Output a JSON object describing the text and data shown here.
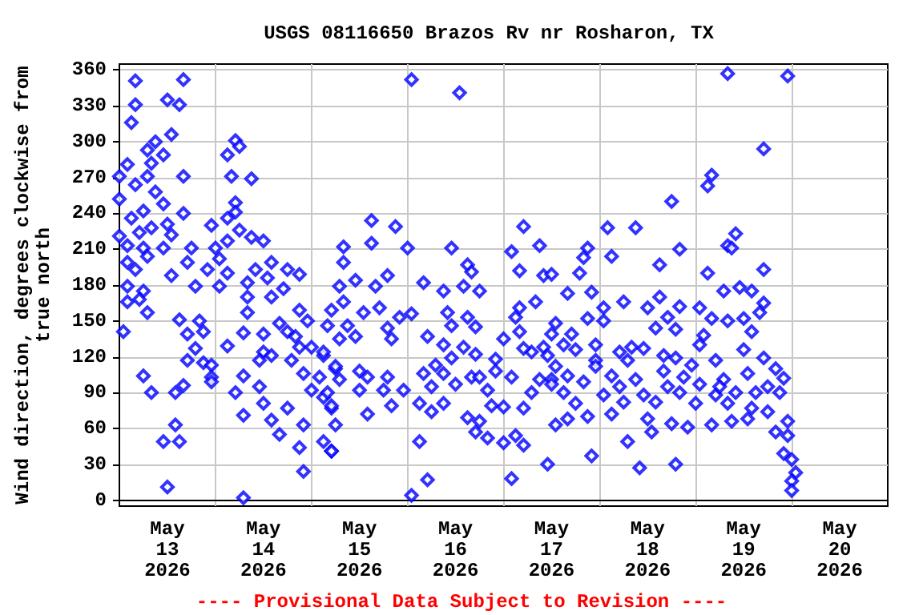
{
  "chart_data": {
    "type": "scatter",
    "title": "USGS 08116650 Brazos Rv nr Rosharon, TX",
    "ylabel": "Wind direction, degrees clockwise from true north",
    "annotations": [
      "---- Provisional Data Subject to Revision ----"
    ],
    "xlim": [
      "2026-05-13T00:00",
      "2026-05-21T00:00"
    ],
    "xticks": [
      {
        "value": "2026-05-13T12:00",
        "label": "May\n13\n2026"
      },
      {
        "value": "2026-05-14T12:00",
        "label": "May\n14\n2026"
      },
      {
        "value": "2026-05-15T12:00",
        "label": "May\n15\n2026"
      },
      {
        "value": "2026-05-16T12:00",
        "label": "May\n16\n2026"
      },
      {
        "value": "2026-05-17T12:00",
        "label": "May\n17\n2026"
      },
      {
        "value": "2026-05-18T12:00",
        "label": "May\n18\n2026"
      },
      {
        "value": "2026-05-19T12:00",
        "label": "May\n19\n2026"
      },
      {
        "value": "2026-05-20T12:00",
        "label": "May\n20\n2026"
      },
      {
        "value": "2026-05-14T00:00",
        "label": null
      },
      {
        "value": "2026-05-15T00:00",
        "label": null
      },
      {
        "value": "2026-05-16T00:00",
        "label": null
      },
      {
        "value": "2026-05-17T00:00",
        "label": null
      },
      {
        "value": "2026-05-18T00:00",
        "label": null
      },
      {
        "value": "2026-05-19T00:00",
        "label": null
      },
      {
        "value": "2026-05-20T00:00",
        "label": null
      }
    ],
    "ylim": [
      -5,
      365
    ],
    "yticks": [
      0,
      30,
      60,
      90,
      120,
      150,
      180,
      210,
      240,
      270,
      300,
      330,
      360
    ],
    "grid": true,
    "marker": "diamond",
    "series": [
      {
        "color": "#0000ff",
        "x": [
          "2026-05-13T04:00",
          "2026-05-13T16:00",
          "2026-05-13T04:00",
          "2026-05-13T12:00",
          "2026-05-13T15:00",
          "2026-05-13T03:00",
          "2026-05-13T13:00",
          "2026-05-13T09:00",
          "2026-05-13T07:00",
          "2026-05-13T11:00",
          "2026-05-14T05:00",
          "2026-05-14T03:00",
          "2026-05-14T06:00",
          "2026-05-13T02:00",
          "2026-05-13T08:00",
          "2026-05-13T07:00",
          "2026-05-13T00:00",
          "2026-05-13T16:00",
          "2026-05-14T04:00",
          "2026-05-14T09:00",
          "2026-05-13T04:00",
          "2026-05-13T09:00",
          "2026-05-13T00:00",
          "2026-05-13T11:00",
          "2026-05-14T05:00",
          "2026-05-13T06:00",
          "2026-05-13T16:00",
          "2026-05-13T03:00",
          "2026-05-14T05:00",
          "2026-05-14T03:00",
          "2026-05-13T00:00",
          "2026-05-13T12:00",
          "2026-05-13T08:00",
          "2026-05-13T23:00",
          "2026-05-13T05:00",
          "2026-05-13T13:00",
          "2026-05-14T06:00",
          "2026-05-14T09:00",
          "2026-05-13T02:00",
          "2026-05-13T06:00",
          "2026-05-13T11:00",
          "2026-05-13T18:00",
          "2026-05-14T00:00",
          "2026-05-14T12:00",
          "2026-05-14T03:00",
          "2026-05-13T07:00",
          "2026-05-13T17:00",
          "2026-05-14T01:00",
          "2026-05-13T02:00",
          "2026-05-13T04:00",
          "2026-05-14T14:00",
          "2026-05-13T22:00",
          "2026-05-14T03:00",
          "2026-05-13T13:00",
          "2026-05-14T10:00",
          "2026-05-14T18:00",
          "2026-05-14T21:00",
          "2026-05-13T02:00",
          "2026-05-13T06:00",
          "2026-05-13T19:00",
          "2026-05-14T01:00",
          "2026-05-14T08:00",
          "2026-05-14T13:00",
          "2026-05-14T17:00",
          "2026-05-13T02:00",
          "2026-05-13T05:00",
          "2026-05-14T08:00",
          "2026-05-14T14:00",
          "2026-05-13T07:00",
          "2026-05-14T21:00",
          "2026-05-14T08:00",
          "2026-05-14T23:00",
          "2026-05-13T01:00",
          "2026-05-13T15:00",
          "2026-05-13T20:00",
          "2026-05-13T21:00",
          "2026-05-14T07:00",
          "2026-05-14T12:00",
          "2026-05-14T16:00",
          "2026-05-13T17:00",
          "2026-05-14T18:00",
          "2026-05-14T20:00",
          "2026-05-14T03:00",
          "2026-05-14T12:00",
          "2026-05-14T14:00",
          "2026-05-13T19:00",
          "2026-05-14T21:00",
          "2026-05-15T00:00",
          "2026-05-15T03:00",
          "2026-05-13T17:00",
          "2026-05-13T21:00",
          "2026-05-13T23:00",
          "2026-05-14T11:00",
          "2026-05-14T19:00",
          "2026-05-14T22:00",
          "2026-05-13T06:00",
          "2026-05-13T23:00",
          "2026-05-14T07:00",
          "2026-05-15T02:00",
          "2026-05-13T23:00",
          "2026-05-15T06:00",
          "2026-05-13T08:00",
          "2026-05-13T14:00",
          "2026-05-13T16:00",
          "2026-05-14T05:00",
          "2026-05-14T11:00",
          "2026-05-15T00:00",
          "2026-05-15T03:00",
          "2026-05-14T12:00",
          "2026-05-14T18:00",
          "2026-05-15T05:00",
          "2026-05-14T07:00",
          "2026-05-14T14:00",
          "2026-05-13T14:00",
          "2026-05-14T22:00",
          "2026-05-13T11:00",
          "2026-05-13T15:00",
          "2026-05-14T16:00",
          "2026-05-14T21:00",
          "2026-05-15T03:00",
          "2026-05-15T05:00",
          "2026-05-14T22:00",
          "2026-05-13T12:00",
          "2026-05-14T07:00",
          "2026-05-16T01:00",
          "2026-05-16T13:00",
          "2026-05-15T15:00",
          "2026-05-15T21:00",
          "2026-05-15T08:00",
          "2026-05-15T15:00",
          "2026-05-16T00:00",
          "2026-05-16T11:00",
          "2026-05-17T05:00",
          "2026-05-17T09:00",
          "2026-05-17T02:00",
          "2026-05-17T04:00",
          "2026-05-15T08:00",
          "2026-05-16T15:00",
          "2026-05-16T16:00",
          "2026-05-17T10:00",
          "2026-05-15T07:00",
          "2026-05-15T11:00",
          "2026-05-15T16:00",
          "2026-05-15T19:00",
          "2026-05-16T04:00",
          "2026-05-16T09:00",
          "2026-05-16T14:00",
          "2026-05-16T18:00",
          "2026-05-15T08:00",
          "2026-05-15T13:00",
          "2026-05-15T17:00",
          "2026-05-17T08:00",
          "2026-05-17T04:00",
          "2026-05-15T05:00",
          "2026-05-15T22:00",
          "2026-05-16T01:00",
          "2026-05-16T10:00",
          "2026-05-16T15:00",
          "2026-05-17T03:00",
          "2026-05-17T13:00",
          "2026-05-15T04:00",
          "2026-05-15T09:00",
          "2026-05-15T19:00",
          "2026-05-16T11:00",
          "2026-05-16T17:00",
          "2026-05-17T04:00",
          "2026-05-15T07:00",
          "2026-05-15T11:00",
          "2026-05-15T20:00",
          "2026-05-16T05:00",
          "2026-05-16T09:00",
          "2026-05-16T14:00",
          "2026-05-17T00:00",
          "2026-05-17T12:00",
          "2026-05-17T07:00",
          "2026-05-15T03:00",
          "2026-05-16T11:00",
          "2026-05-16T17:00",
          "2026-05-16T22:00",
          "2026-05-17T05:00",
          "2026-05-17T10:00",
          "2026-05-15T06:00",
          "2026-05-15T12:00",
          "2026-05-16T07:00",
          "2026-05-16T22:00",
          "2026-05-17T13:00",
          "2026-05-15T07:00",
          "2026-05-15T14:00",
          "2026-05-15T19:00",
          "2026-05-16T04:00",
          "2026-05-16T09:00",
          "2026-05-16T16:00",
          "2026-05-16T18:00",
          "2026-05-17T02:00",
          "2026-05-17T09:00",
          "2026-05-17T12:00",
          "2026-05-15T12:00",
          "2026-05-15T18:00",
          "2026-05-15T23:00",
          "2026-05-16T06:00",
          "2026-05-16T12:00",
          "2026-05-16T20:00",
          "2026-05-17T07:00",
          "2026-05-15T04:00",
          "2026-05-15T05:00",
          "2026-05-15T20:00",
          "2026-05-16T03:00",
          "2026-05-16T09:00",
          "2026-05-16T21:00",
          "2026-05-17T05:00",
          "2026-05-17T00:00",
          "2026-05-15T06:00",
          "2026-05-15T14:00",
          "2026-05-16T06:00",
          "2026-05-16T15:00",
          "2026-05-16T18:00",
          "2026-05-17T13:00",
          "2026-05-15T05:00",
          "2026-05-16T03:00",
          "2026-05-16T17:00",
          "2026-05-16T20:00",
          "2026-05-17T00:00",
          "2026-05-17T05:00",
          "2026-05-17T03:00",
          "2026-05-16T05:00",
          "2026-05-16T01:00",
          "2026-05-17T02:00",
          "2026-05-17T11:00",
          "2026-05-19T08:00",
          "2026-05-19T04:00",
          "2026-05-19T03:00",
          "2026-05-18T18:00",
          "2026-05-18T02:00",
          "2026-05-18T09:00",
          "2026-05-18T20:00",
          "2026-05-18T15:00",
          "2026-05-17T21:00",
          "2026-05-17T20:00",
          "2026-05-18T03:00",
          "2026-05-17T19:00",
          "2026-05-17T12:00",
          "2026-05-19T03:00",
          "2026-05-19T08:00",
          "2026-05-17T16:00",
          "2026-05-17T22:00",
          "2026-05-18T06:00",
          "2026-05-18T12:00",
          "2026-05-18T15:00",
          "2026-05-18T20:00",
          "2026-05-19T01:00",
          "2026-05-19T07:00",
          "2026-05-18T01:00",
          "2026-05-17T21:00",
          "2026-05-18T01:00",
          "2026-05-19T04:00",
          "2026-05-19T08:00",
          "2026-05-18T17:00",
          "2026-05-18T14:00",
          "2026-05-18T19:00",
          "2026-05-17T17:00",
          "2026-05-19T02:00",
          "2026-05-17T15:00",
          "2026-05-17T23:00",
          "2026-05-18T08:00",
          "2026-05-18T11:00",
          "2026-05-19T01:00",
          "2026-05-17T11:00",
          "2026-05-17T18:00",
          "2026-05-18T05:00",
          "2026-05-18T16:00",
          "2026-05-17T23:00",
          "2026-05-18T07:00",
          "2026-05-18T19:00",
          "2026-05-19T05:00",
          "2026-05-18T23:00",
          "2026-05-17T23:00",
          "2026-05-17T16:00",
          "2026-05-18T03:00",
          "2026-05-18T16:00",
          "2026-05-18T09:00",
          "2026-05-18T21:00",
          "2026-05-19T07:00",
          "2026-05-17T12:00",
          "2026-05-17T20:00",
          "2026-05-18T05:00",
          "2026-05-18T17:00",
          "2026-05-19T01:00",
          "2026-05-17T15:00",
          "2026-05-18T01:00",
          "2026-05-18T11:00",
          "2026-05-18T20:00",
          "2026-05-19T05:00",
          "2026-05-17T18:00",
          "2026-05-18T06:00",
          "2026-05-18T14:00",
          "2026-05-19T00:00",
          "2026-05-19T08:00",
          "2026-05-17T16:00",
          "2026-05-17T21:00",
          "2026-05-18T03:00",
          "2026-05-18T12:00",
          "2026-05-18T18:00",
          "2026-05-18T22:00",
          "2026-05-19T04:00",
          "2026-05-18T13:00",
          "2026-05-18T07:00",
          "2026-05-17T22:00",
          "2026-05-18T10:00",
          "2026-05-18T19:00",
          "2026-05-19T23:00",
          "2026-05-19T17:00",
          "2026-05-19T10:00",
          "2026-05-19T09:00",
          "2026-05-19T17:00",
          "2026-05-19T11:00",
          "2026-05-19T14:00",
          "2026-05-19T17:00",
          "2026-05-19T16:00",
          "2026-05-19T12:00",
          "2026-05-19T14:00",
          "2026-05-19T12:00",
          "2026-05-19T17:00",
          "2026-05-19T20:00",
          "2026-05-19T22:00",
          "2026-05-19T13:00",
          "2026-05-19T18:00",
          "2026-05-19T06:00",
          "2026-05-19T10:00",
          "2026-05-19T15:00",
          "2026-05-19T21:00",
          "2026-05-19T14:00",
          "2026-05-19T18:00",
          "2026-05-19T09:00",
          "2026-05-19T13:00",
          "2026-05-19T23:00",
          "2026-05-19T20:00",
          "2026-05-19T23:00",
          "2026-05-19T22:00",
          "2026-05-20T00:00",
          "2026-05-20T01:00",
          "2026-05-20T00:00",
          "2026-05-20T00:00"
        ],
        "values": [
          351,
          352,
          331,
          335,
          331,
          316,
          306,
          300,
          293,
          289,
          301,
          289,
          296,
          281,
          282,
          271,
          271,
          271,
          271,
          269,
          264,
          258,
          252,
          248,
          249,
          242,
          240,
          236,
          241,
          236,
          221,
          231,
          228,
          230,
          224,
          222,
          226,
          220,
          213,
          211,
          211,
          211,
          211,
          217,
          217,
          204,
          199,
          202,
          199,
          193,
          199,
          193,
          190,
          188,
          193,
          193,
          189,
          179,
          175,
          179,
          179,
          182,
          186,
          177,
          166,
          168,
          170,
          170,
          157,
          159,
          157,
          150,
          141,
          151,
          150,
          141,
          140,
          139,
          148,
          139,
          141,
          137,
          129,
          124,
          121,
          127,
          128,
          128,
          121,
          117,
          115,
          113,
          117,
          117,
          106,
          104,
          103,
          104,
          103,
          99,
          110,
          90,
          90,
          96,
          90,
          95,
          92,
          86,
          81,
          77,
          77,
          71,
          67,
          63,
          63,
          49,
          49,
          55,
          44,
          49,
          41,
          24,
          11,
          2,
          352,
          341,
          234,
          229,
          212,
          215,
          211,
          211,
          229,
          213,
          208,
          192,
          199,
          197,
          191,
          188,
          179,
          184,
          179,
          188,
          182,
          175,
          179,
          175,
          166,
          157,
          161,
          166,
          161,
          159,
          153,
          156,
          157,
          153,
          153,
          148,
          146,
          146,
          144,
          146,
          145,
          141,
          135,
          137,
          135,
          137,
          130,
          128,
          135,
          139,
          124,
          124,
          119,
          122,
          118,
          127,
          128,
          112,
          108,
          113,
          108,
          112,
          101,
          103,
          103,
          106,
          106,
          103,
          103,
          103,
          101,
          101,
          92,
          92,
          92,
          95,
          97,
          92,
          90,
          90,
          79,
          79,
          81,
          81,
          79,
          77,
          78,
          63,
          72,
          74,
          69,
          66,
          63,
          41,
          49,
          57,
          52,
          48,
          46,
          54,
          17,
          4,
          18,
          30,
          357,
          272,
          263,
          250,
          228,
          228,
          210,
          197,
          211,
          203,
          204,
          190,
          189,
          190,
          213,
          173,
          174,
          166,
          161,
          170,
          162,
          161,
          175,
          161,
          152,
          150,
          152,
          150,
          153,
          144,
          143,
          139,
          138,
          130,
          130,
          128,
          127,
          130,
          121,
          126,
          124,
          121,
          117,
          117,
          119,
          117,
          113,
          112,
          104,
          104,
          108,
          101,
          103,
          101,
          97,
          99,
          95,
          95,
          97,
          90,
          88,
          88,
          90,
          88,
          81,
          82,
          82,
          81,
          81,
          68,
          70,
          72,
          68,
          64,
          61,
          63,
          57,
          49,
          37,
          27,
          30,
          355,
          294,
          223,
          211,
          193,
          178,
          175,
          165,
          157,
          152,
          141,
          126,
          119,
          110,
          102,
          106,
          95,
          95,
          90,
          90,
          90,
          77,
          74,
          66,
          68,
          66,
          57,
          54,
          39,
          34,
          23,
          16,
          8
        ]
      }
    ]
  }
}
